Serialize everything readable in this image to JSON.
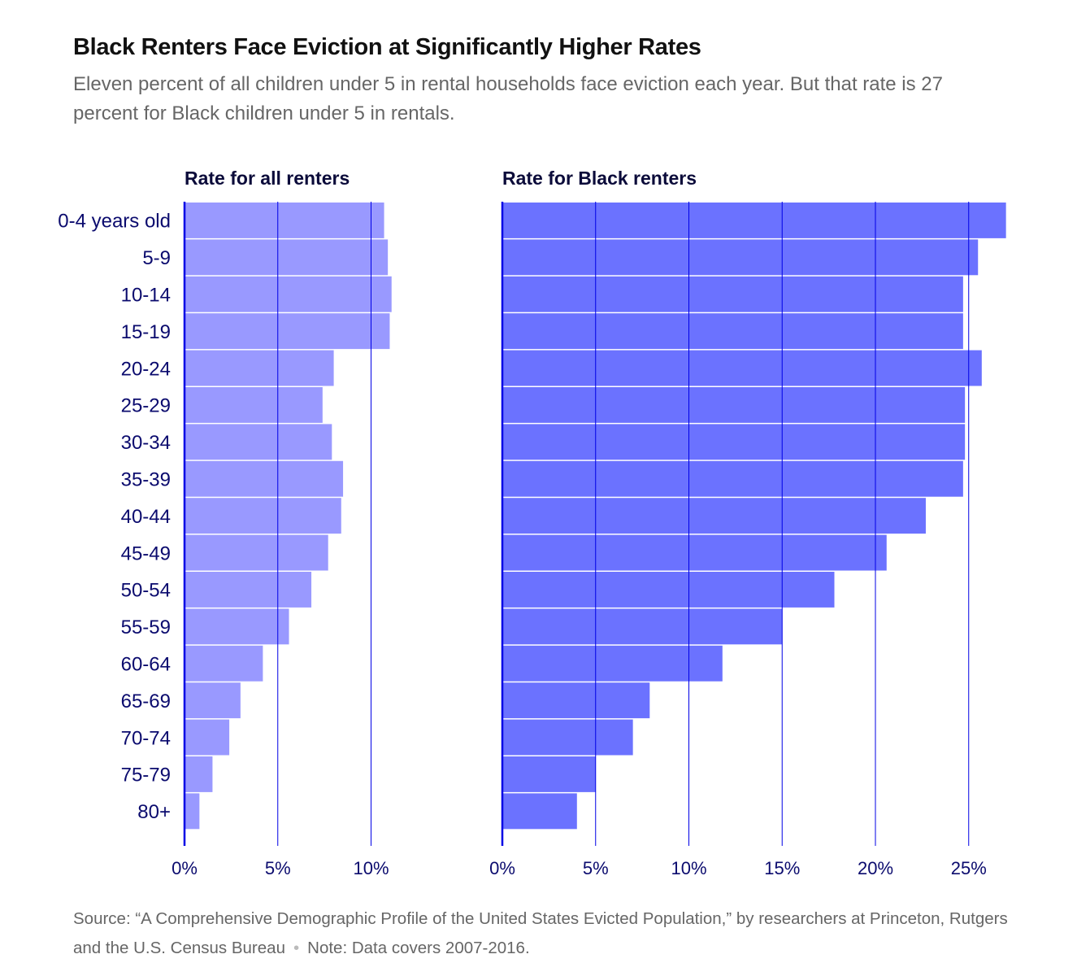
{
  "title": "Black Renters Face Eviction at Significantly Higher Rates",
  "subtitle": "Eleven percent of all children under 5 in rental households face eviction each year. But that rate is 27 percent for Black children under 5 in rentals.",
  "source": "Source: “A Comprehensive Demographic Profile of the United States Evicted Population,” by researchers at Princeton, Rutgers and the U.S. Census Bureau",
  "note": "Note: Data covers 2007-2016.",
  "colors": {
    "all_renters": "#9999ff",
    "black_renters": "#6b72ff",
    "axis": "#0000e6",
    "label": "#0b0b6e"
  },
  "chart_data": [
    {
      "type": "bar",
      "orientation": "horizontal",
      "title": "Rate for all renters",
      "categories": [
        "0-4 years old",
        "5-9",
        "10-14",
        "15-19",
        "20-24",
        "25-29",
        "30-34",
        "35-39",
        "40-44",
        "45-49",
        "50-54",
        "55-59",
        "60-64",
        "65-69",
        "70-74",
        "75-79",
        "80+"
      ],
      "values": [
        10.7,
        10.9,
        11.1,
        11.0,
        8.0,
        7.4,
        7.9,
        8.5,
        8.4,
        7.7,
        6.8,
        5.6,
        4.2,
        3.0,
        2.4,
        1.5,
        0.8
      ],
      "ticks": [
        "0%",
        "5%",
        "10%"
      ],
      "xlim": [
        0,
        11.1
      ],
      "grid": true
    },
    {
      "type": "bar",
      "orientation": "horizontal",
      "title": "Rate for Black renters",
      "categories": [
        "0-4 years old",
        "5-9",
        "10-14",
        "15-19",
        "20-24",
        "25-29",
        "30-34",
        "35-39",
        "40-44",
        "45-49",
        "50-54",
        "55-59",
        "60-64",
        "65-69",
        "70-74",
        "75-79",
        "80+"
      ],
      "values": [
        27.0,
        25.5,
        24.7,
        24.7,
        25.7,
        24.8,
        24.8,
        24.7,
        22.7,
        20.6,
        17.8,
        15.0,
        11.8,
        7.9,
        7.0,
        5.0,
        4.0
      ],
      "ticks": [
        "0%",
        "5%",
        "10%",
        "15%",
        "20%",
        "25%"
      ],
      "xlim": [
        0,
        27
      ],
      "grid": true
    }
  ]
}
